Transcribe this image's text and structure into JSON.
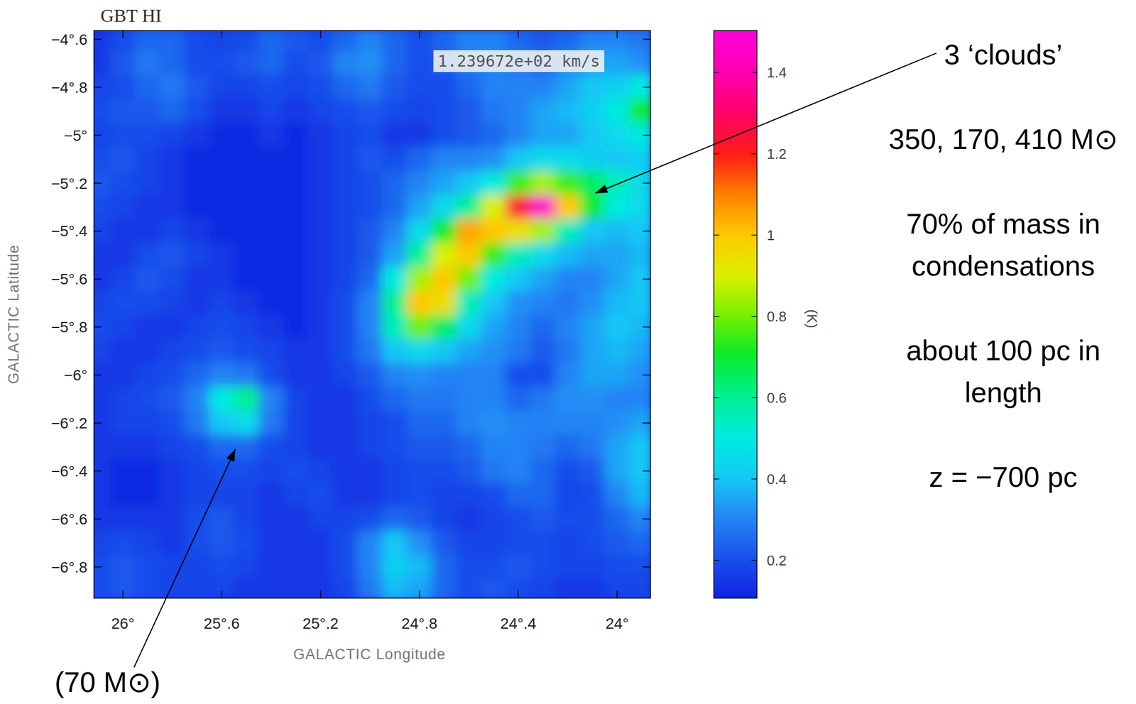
{
  "chart_data": {
    "type": "heatmap",
    "title": "GBT HI",
    "subtitle": "1.239672e+02 km/s",
    "x_label": "GALACTIC Longitude",
    "y_label": "GALACTIC Latitude",
    "xlim": [
      26.117,
      23.865
    ],
    "ylim": [
      -6.93,
      -4.564
    ],
    "xticks": [
      {
        "value": 26,
        "label": "26°"
      },
      {
        "value": 25.6,
        "label": "25°.6"
      },
      {
        "value": 25.2,
        "label": "25°.2"
      },
      {
        "value": 24.8,
        "label": "24°.8"
      },
      {
        "value": 24.4,
        "label": "24°.4"
      },
      {
        "value": 24,
        "label": "24°"
      }
    ],
    "yticks": [
      {
        "value": -4.6,
        "label": "−4°.6"
      },
      {
        "value": -4.8,
        "label": "−4°.8"
      },
      {
        "value": -5,
        "label": "−5°"
      },
      {
        "value": -5.2,
        "label": "−5°.2"
      },
      {
        "value": -5.4,
        "label": "−5°.4"
      },
      {
        "value": -5.6,
        "label": "−5°.6"
      },
      {
        "value": -5.8,
        "label": "−5°.8"
      },
      {
        "value": -6,
        "label": "−6°"
      },
      {
        "value": -6.2,
        "label": "−6°.2"
      },
      {
        "value": -6.4,
        "label": "−6°.4"
      },
      {
        "value": -6.6,
        "label": "−6°.6"
      },
      {
        "value": -6.8,
        "label": "−6°.8"
      }
    ],
    "x": [
      26.1,
      26.0,
      25.9,
      25.8,
      25.7,
      25.6,
      25.5,
      25.4,
      25.3,
      25.2,
      25.1,
      25.0,
      24.9,
      24.8,
      24.7,
      24.6,
      24.5,
      24.4,
      24.3,
      24.2,
      24.1,
      24.0,
      23.9
    ],
    "y": [
      -4.6,
      -4.7,
      -4.8,
      -4.9,
      -5.0,
      -5.1,
      -5.2,
      -5.3,
      -5.4,
      -5.5,
      -5.6,
      -5.7,
      -5.8,
      -5.9,
      -6.0,
      -6.1,
      -6.2,
      -6.3,
      -6.4,
      -6.5,
      -6.6,
      -6.7,
      -6.8,
      -6.9
    ],
    "cells": [
      [
        0.15,
        0.2,
        0.25,
        0.25,
        0.2,
        0.18,
        0.2,
        0.25,
        0.22,
        0.2,
        0.25,
        0.3,
        0.25,
        0.2,
        0.25,
        0.3,
        0.3,
        0.25,
        0.22,
        0.25,
        0.3,
        0.3,
        0.28
      ],
      [
        0.15,
        0.22,
        0.28,
        0.25,
        0.2,
        0.2,
        0.22,
        0.25,
        0.2,
        0.22,
        0.3,
        0.32,
        0.25,
        0.2,
        0.22,
        0.28,
        0.3,
        0.28,
        0.25,
        0.3,
        0.35,
        0.35,
        0.32
      ],
      [
        0.18,
        0.2,
        0.25,
        0.28,
        0.22,
        0.18,
        0.18,
        0.2,
        0.18,
        0.2,
        0.25,
        0.28,
        0.22,
        0.2,
        0.2,
        0.25,
        0.3,
        0.3,
        0.3,
        0.35,
        0.4,
        0.42,
        0.5
      ],
      [
        0.2,
        0.22,
        0.22,
        0.25,
        0.2,
        0.15,
        0.15,
        0.18,
        0.15,
        0.18,
        0.2,
        0.22,
        0.2,
        0.18,
        0.2,
        0.22,
        0.28,
        0.3,
        0.35,
        0.38,
        0.42,
        0.5,
        0.7
      ],
      [
        0.18,
        0.2,
        0.2,
        0.18,
        0.15,
        0.12,
        0.12,
        0.15,
        0.12,
        0.15,
        0.18,
        0.2,
        0.15,
        0.15,
        0.2,
        0.22,
        0.25,
        0.3,
        0.35,
        0.35,
        0.4,
        0.45,
        0.5
      ],
      [
        0.2,
        0.22,
        0.18,
        0.15,
        0.12,
        0.12,
        0.12,
        0.12,
        0.12,
        0.15,
        0.18,
        0.22,
        0.2,
        0.25,
        0.3,
        0.3,
        0.32,
        0.4,
        0.45,
        0.45,
        0.42,
        0.4,
        0.42
      ],
      [
        0.22,
        0.2,
        0.18,
        0.15,
        0.12,
        0.12,
        0.12,
        0.12,
        0.12,
        0.15,
        0.18,
        0.2,
        0.25,
        0.3,
        0.35,
        0.4,
        0.5,
        0.75,
        0.85,
        0.75,
        0.65,
        0.55,
        0.45
      ],
      [
        0.2,
        0.18,
        0.15,
        0.15,
        0.12,
        0.12,
        0.12,
        0.12,
        0.12,
        0.15,
        0.18,
        0.2,
        0.25,
        0.35,
        0.45,
        0.6,
        0.9,
        1.25,
        1.45,
        1.0,
        0.7,
        0.5,
        0.45
      ],
      [
        0.18,
        0.15,
        0.15,
        0.18,
        0.15,
        0.12,
        0.12,
        0.12,
        0.12,
        0.15,
        0.18,
        0.22,
        0.3,
        0.45,
        0.7,
        1.05,
        1.0,
        0.95,
        0.85,
        0.55,
        0.4,
        0.38,
        0.4
      ],
      [
        0.15,
        0.15,
        0.2,
        0.22,
        0.18,
        0.15,
        0.12,
        0.12,
        0.12,
        0.15,
        0.18,
        0.22,
        0.35,
        0.6,
        0.9,
        1.0,
        0.75,
        0.55,
        0.45,
        0.38,
        0.35,
        0.35,
        0.38
      ],
      [
        0.15,
        0.18,
        0.22,
        0.2,
        0.15,
        0.15,
        0.12,
        0.12,
        0.12,
        0.15,
        0.18,
        0.25,
        0.5,
        0.85,
        1.0,
        0.8,
        0.5,
        0.4,
        0.35,
        0.3,
        0.3,
        0.35,
        0.4
      ],
      [
        0.18,
        0.2,
        0.2,
        0.18,
        0.15,
        0.18,
        0.15,
        0.12,
        0.12,
        0.15,
        0.2,
        0.3,
        0.6,
        1.0,
        0.95,
        0.55,
        0.4,
        0.32,
        0.3,
        0.28,
        0.32,
        0.38,
        0.4
      ],
      [
        0.2,
        0.18,
        0.15,
        0.15,
        0.18,
        0.2,
        0.18,
        0.15,
        0.12,
        0.15,
        0.2,
        0.3,
        0.55,
        0.8,
        0.65,
        0.45,
        0.35,
        0.3,
        0.25,
        0.3,
        0.35,
        0.4,
        0.38
      ],
      [
        0.18,
        0.15,
        0.15,
        0.18,
        0.2,
        0.22,
        0.2,
        0.18,
        0.15,
        0.15,
        0.2,
        0.28,
        0.4,
        0.45,
        0.4,
        0.35,
        0.32,
        0.28,
        0.22,
        0.28,
        0.35,
        0.38,
        0.35
      ],
      [
        0.15,
        0.15,
        0.18,
        0.2,
        0.25,
        0.3,
        0.28,
        0.2,
        0.15,
        0.15,
        0.18,
        0.22,
        0.3,
        0.32,
        0.3,
        0.3,
        0.3,
        0.2,
        0.2,
        0.3,
        0.35,
        0.35,
        0.32
      ],
      [
        0.15,
        0.18,
        0.2,
        0.22,
        0.3,
        0.5,
        0.6,
        0.3,
        0.18,
        0.15,
        0.15,
        0.2,
        0.25,
        0.28,
        0.28,
        0.3,
        0.3,
        0.25,
        0.28,
        0.32,
        0.32,
        0.3,
        0.3
      ],
      [
        0.15,
        0.18,
        0.18,
        0.2,
        0.28,
        0.4,
        0.45,
        0.28,
        0.18,
        0.15,
        0.15,
        0.18,
        0.2,
        0.25,
        0.25,
        0.3,
        0.32,
        0.3,
        0.3,
        0.3,
        0.3,
        0.32,
        0.35
      ],
      [
        0.15,
        0.15,
        0.15,
        0.18,
        0.2,
        0.25,
        0.25,
        0.2,
        0.18,
        0.15,
        0.15,
        0.18,
        0.2,
        0.22,
        0.22,
        0.25,
        0.3,
        0.3,
        0.28,
        0.25,
        0.28,
        0.35,
        0.4
      ],
      [
        0.15,
        0.12,
        0.12,
        0.15,
        0.18,
        0.2,
        0.2,
        0.18,
        0.2,
        0.18,
        0.15,
        0.15,
        0.18,
        0.2,
        0.2,
        0.22,
        0.28,
        0.3,
        0.25,
        0.2,
        0.22,
        0.35,
        0.4
      ],
      [
        0.15,
        0.12,
        0.12,
        0.15,
        0.18,
        0.18,
        0.18,
        0.15,
        0.18,
        0.2,
        0.15,
        0.15,
        0.18,
        0.2,
        0.18,
        0.18,
        0.2,
        0.25,
        0.25,
        0.18,
        0.2,
        0.3,
        0.38
      ],
      [
        0.15,
        0.15,
        0.15,
        0.15,
        0.2,
        0.22,
        0.18,
        0.15,
        0.15,
        0.18,
        0.18,
        0.2,
        0.25,
        0.22,
        0.18,
        0.15,
        0.18,
        0.2,
        0.22,
        0.2,
        0.2,
        0.25,
        0.3
      ],
      [
        0.18,
        0.2,
        0.18,
        0.15,
        0.2,
        0.22,
        0.2,
        0.15,
        0.15,
        0.15,
        0.2,
        0.3,
        0.4,
        0.32,
        0.22,
        0.18,
        0.18,
        0.2,
        0.2,
        0.18,
        0.2,
        0.22,
        0.25
      ],
      [
        0.2,
        0.22,
        0.2,
        0.18,
        0.18,
        0.2,
        0.18,
        0.15,
        0.15,
        0.15,
        0.2,
        0.3,
        0.42,
        0.38,
        0.25,
        0.2,
        0.2,
        0.22,
        0.2,
        0.18,
        0.18,
        0.2,
        0.2
      ],
      [
        0.2,
        0.22,
        0.2,
        0.18,
        0.18,
        0.18,
        0.15,
        0.15,
        0.15,
        0.15,
        0.18,
        0.28,
        0.38,
        0.35,
        0.25,
        0.2,
        0.22,
        0.2,
        0.18,
        0.15,
        0.15,
        0.18,
        0.18
      ]
    ],
    "colorbar": {
      "label": "(K)",
      "range": [
        0.107,
        1.503
      ],
      "ticks": [
        0.2,
        0.4,
        0.6,
        0.8,
        1,
        1.2,
        1.4
      ]
    },
    "annotations": [
      "3 ‘clouds’",
      "350, 170, 410 M⊙",
      "70% of mass in condensations",
      "about 100 pc in length",
      "z = −700 pc"
    ],
    "callout": "(70 M⊙)"
  }
}
